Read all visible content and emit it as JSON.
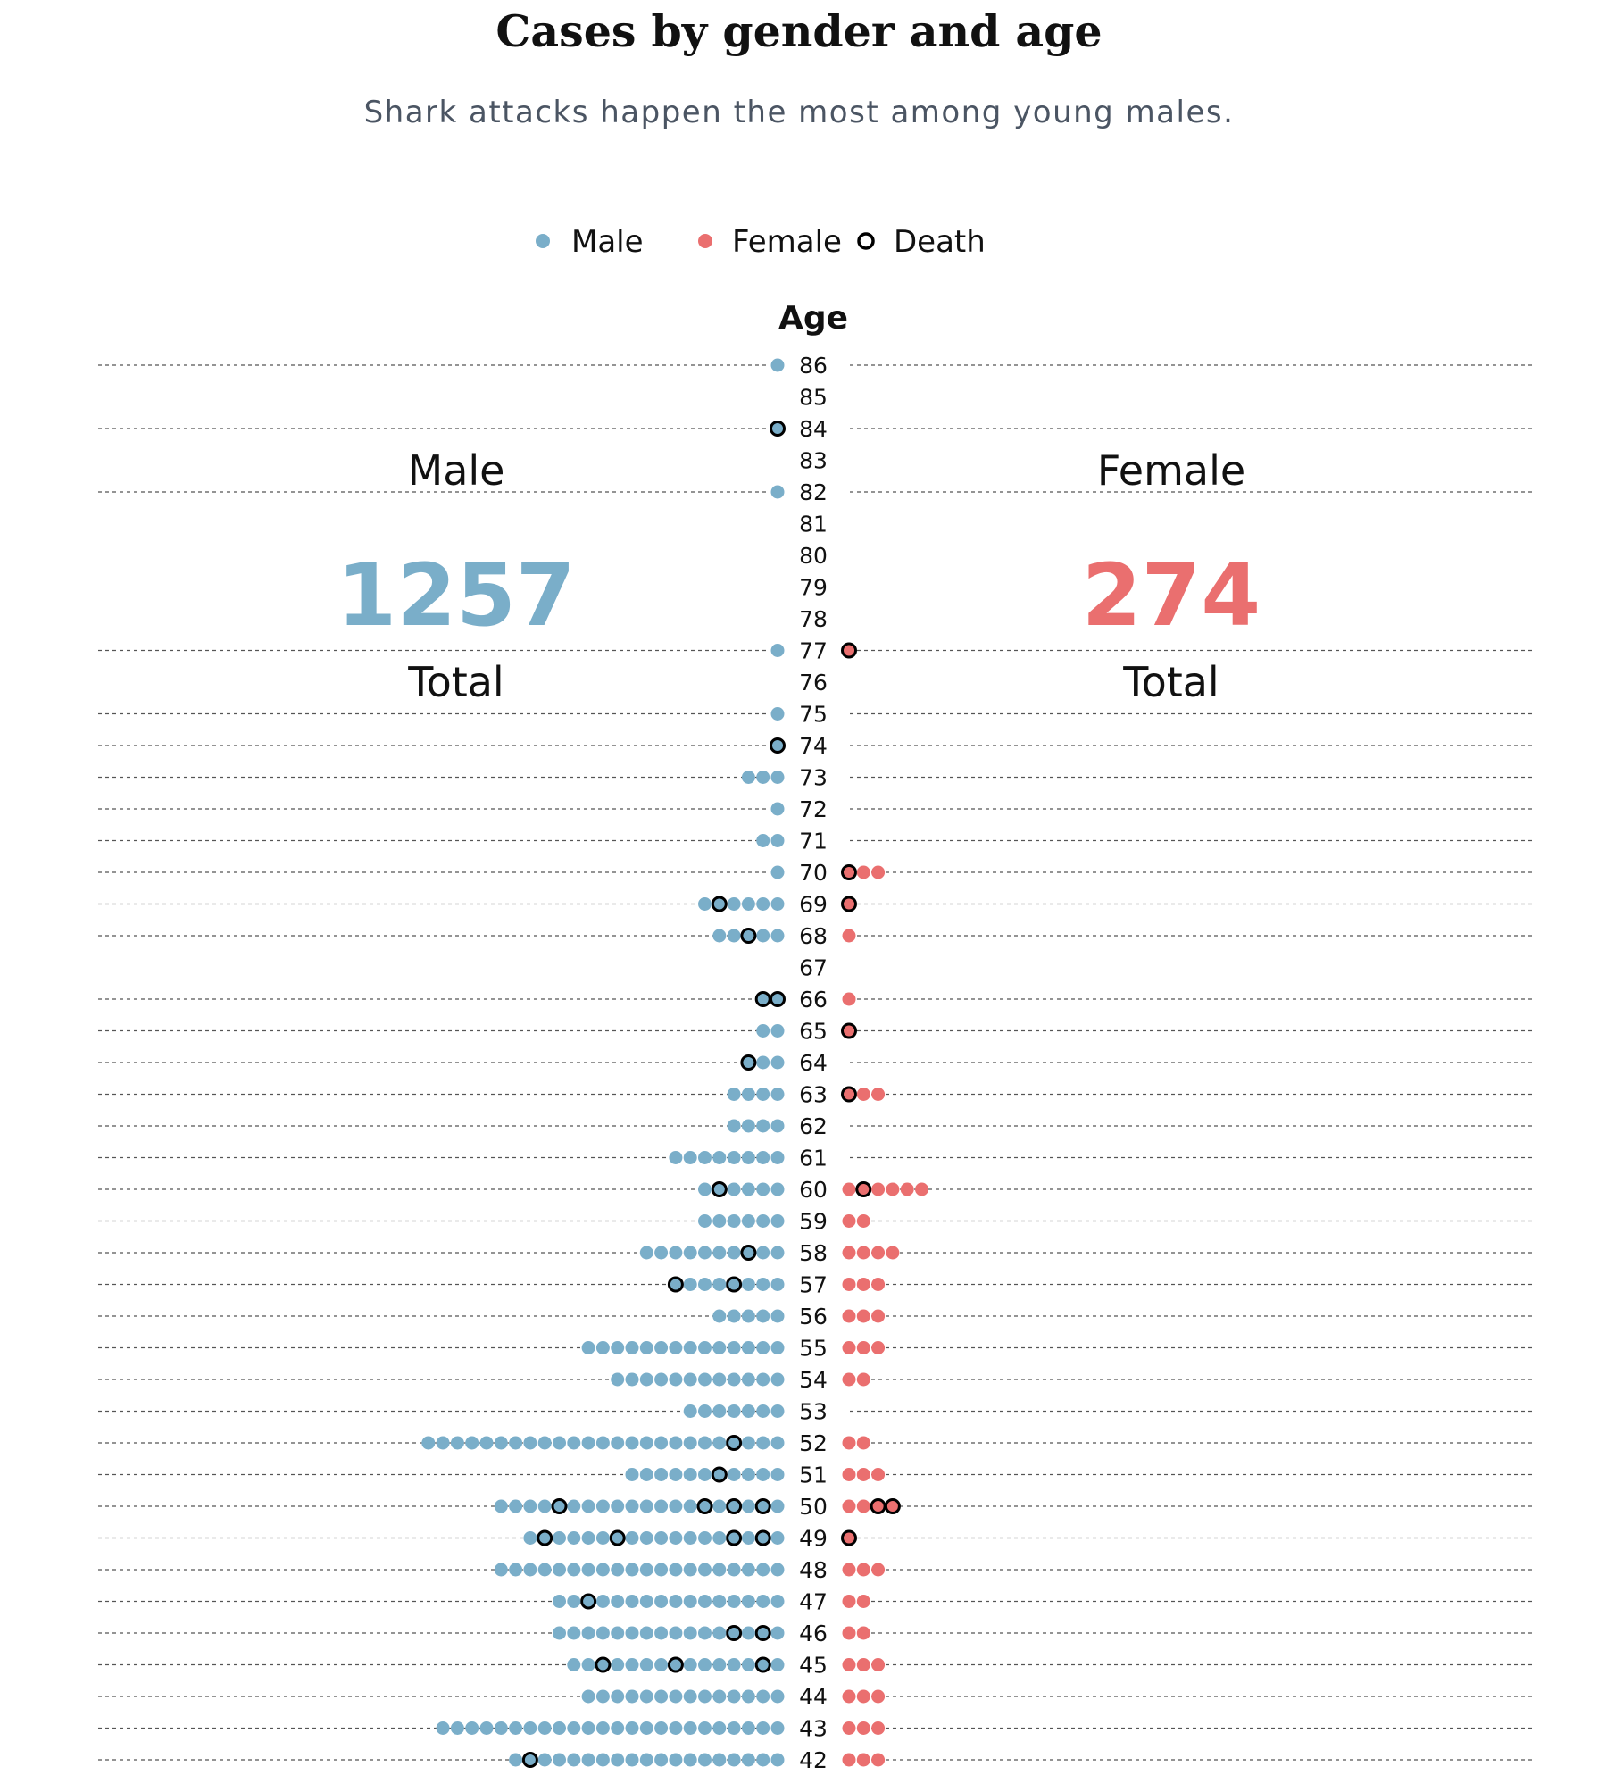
{
  "header": {
    "title": "Cases by gender and age",
    "subtitle": "Shark attacks happen the most among young males."
  },
  "colors": {
    "male": "#7aaec9",
    "female": "#ea6f6f",
    "death_outline": "#000000",
    "grid": "#555555"
  },
  "legend": [
    {
      "label": "Male",
      "type": "male"
    },
    {
      "label": "Female",
      "type": "female"
    },
    {
      "label": "Death",
      "type": "death"
    }
  ],
  "axis_title": "Age",
  "totals": {
    "male": {
      "label": "Male",
      "value": "1257",
      "caption": "Total"
    },
    "female": {
      "label": "Female",
      "value": "274",
      "caption": "Total"
    }
  },
  "chart_data": {
    "type": "dot-plot",
    "title": "Cases by gender and age",
    "subtitle": "Shark attacks happen the most among young males.",
    "ylabel": "Age",
    "series": [
      {
        "name": "Male"
      },
      {
        "name": "Female"
      },
      {
        "name": "Death"
      }
    ],
    "note": "Per age row: count of cases on each side; death_positions are 1-based dot indices counted outward from the axis.",
    "rows": [
      {
        "age": 86,
        "male": 1,
        "male_deaths": [],
        "female": 0,
        "female_deaths": []
      },
      {
        "age": 85,
        "male": 0,
        "male_deaths": [],
        "female": 0,
        "female_deaths": []
      },
      {
        "age": 84,
        "male": 1,
        "male_deaths": [
          1
        ],
        "female": 0,
        "female_deaths": []
      },
      {
        "age": 83,
        "male": 0,
        "male_deaths": [],
        "female": 0,
        "female_deaths": []
      },
      {
        "age": 82,
        "male": 1,
        "male_deaths": [],
        "female": 0,
        "female_deaths": []
      },
      {
        "age": 81,
        "male": 0,
        "male_deaths": [],
        "female": 0,
        "female_deaths": []
      },
      {
        "age": 80,
        "male": 0,
        "male_deaths": [],
        "female": 0,
        "female_deaths": []
      },
      {
        "age": 79,
        "male": 0,
        "male_deaths": [],
        "female": 0,
        "female_deaths": []
      },
      {
        "age": 78,
        "male": 0,
        "male_deaths": [],
        "female": 0,
        "female_deaths": []
      },
      {
        "age": 77,
        "male": 1,
        "male_deaths": [],
        "female": 1,
        "female_deaths": [
          1
        ]
      },
      {
        "age": 76,
        "male": 0,
        "male_deaths": [],
        "female": 0,
        "female_deaths": []
      },
      {
        "age": 75,
        "male": 1,
        "male_deaths": [],
        "female": 0,
        "female_deaths": []
      },
      {
        "age": 74,
        "male": 1,
        "male_deaths": [
          1
        ],
        "female": 0,
        "female_deaths": []
      },
      {
        "age": 73,
        "male": 3,
        "male_deaths": [],
        "female": 0,
        "female_deaths": []
      },
      {
        "age": 72,
        "male": 1,
        "male_deaths": [],
        "female": 0,
        "female_deaths": []
      },
      {
        "age": 71,
        "male": 2,
        "male_deaths": [],
        "female": 0,
        "female_deaths": []
      },
      {
        "age": 70,
        "male": 1,
        "male_deaths": [],
        "female": 3,
        "female_deaths": [
          1
        ]
      },
      {
        "age": 69,
        "male": 6,
        "male_deaths": [
          5
        ],
        "female": 1,
        "female_deaths": [
          1
        ]
      },
      {
        "age": 68,
        "male": 5,
        "male_deaths": [
          3
        ],
        "female": 1,
        "female_deaths": []
      },
      {
        "age": 67,
        "male": 0,
        "male_deaths": [],
        "female": 0,
        "female_deaths": []
      },
      {
        "age": 66,
        "male": 2,
        "male_deaths": [
          1,
          2
        ],
        "female": 1,
        "female_deaths": []
      },
      {
        "age": 65,
        "male": 2,
        "male_deaths": [],
        "female": 1,
        "female_deaths": [
          1
        ]
      },
      {
        "age": 64,
        "male": 3,
        "male_deaths": [
          3
        ],
        "female": 0,
        "female_deaths": []
      },
      {
        "age": 63,
        "male": 4,
        "male_deaths": [],
        "female": 3,
        "female_deaths": [
          1
        ]
      },
      {
        "age": 62,
        "male": 4,
        "male_deaths": [],
        "female": 0,
        "female_deaths": []
      },
      {
        "age": 61,
        "male": 8,
        "male_deaths": [],
        "female": 0,
        "female_deaths": []
      },
      {
        "age": 60,
        "male": 6,
        "male_deaths": [
          5
        ],
        "female": 6,
        "female_deaths": [
          2
        ]
      },
      {
        "age": 59,
        "male": 6,
        "male_deaths": [],
        "female": 2,
        "female_deaths": []
      },
      {
        "age": 58,
        "male": 10,
        "male_deaths": [
          3
        ],
        "female": 4,
        "female_deaths": []
      },
      {
        "age": 57,
        "male": 8,
        "male_deaths": [
          4,
          8
        ],
        "female": 3,
        "female_deaths": []
      },
      {
        "age": 56,
        "male": 5,
        "male_deaths": [],
        "female": 3,
        "female_deaths": []
      },
      {
        "age": 55,
        "male": 14,
        "male_deaths": [],
        "female": 3,
        "female_deaths": []
      },
      {
        "age": 54,
        "male": 12,
        "male_deaths": [],
        "female": 2,
        "female_deaths": []
      },
      {
        "age": 53,
        "male": 7,
        "male_deaths": [],
        "female": 0,
        "female_deaths": []
      },
      {
        "age": 52,
        "male": 25,
        "male_deaths": [
          4
        ],
        "female": 2,
        "female_deaths": []
      },
      {
        "age": 51,
        "male": 11,
        "male_deaths": [
          5
        ],
        "female": 3,
        "female_deaths": []
      },
      {
        "age": 50,
        "male": 20,
        "male_deaths": [
          2,
          4,
          6,
          16
        ],
        "female": 4,
        "female_deaths": [
          3,
          4
        ]
      },
      {
        "age": 49,
        "male": 18,
        "male_deaths": [
          2,
          4,
          12,
          17
        ],
        "female": 1,
        "female_deaths": [
          1
        ]
      },
      {
        "age": 48,
        "male": 20,
        "male_deaths": [],
        "female": 3,
        "female_deaths": []
      },
      {
        "age": 47,
        "male": 16,
        "male_deaths": [
          14
        ],
        "female": 2,
        "female_deaths": []
      },
      {
        "age": 46,
        "male": 16,
        "male_deaths": [
          2,
          4
        ],
        "female": 2,
        "female_deaths": []
      },
      {
        "age": 45,
        "male": 15,
        "male_deaths": [
          2,
          8,
          13
        ],
        "female": 3,
        "female_deaths": []
      },
      {
        "age": 44,
        "male": 14,
        "male_deaths": [],
        "female": 3,
        "female_deaths": []
      },
      {
        "age": 43,
        "male": 24,
        "male_deaths": [],
        "female": 3,
        "female_deaths": []
      },
      {
        "age": 42,
        "male": 19,
        "male_deaths": [
          18
        ],
        "female": 3,
        "female_deaths": []
      }
    ]
  }
}
